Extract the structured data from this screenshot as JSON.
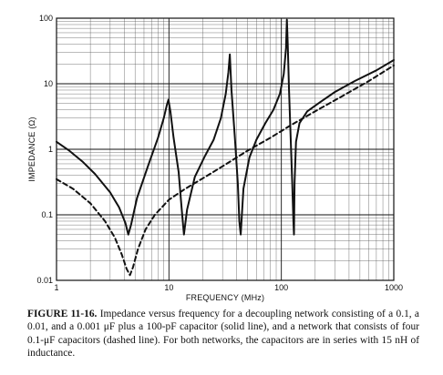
{
  "chart_data": {
    "type": "line",
    "xscale": "log",
    "yscale": "log",
    "xlim": [
      1,
      1000
    ],
    "ylim": [
      0.01,
      100
    ],
    "xlabel": "FREQUENCY (MHz)",
    "ylabel": "IMPEDANCE (Ω)",
    "x_ticks": [
      "1",
      "10",
      "100",
      "1000"
    ],
    "y_ticks": [
      "100",
      "10",
      "1",
      "0.1",
      "0.01"
    ],
    "grid": true,
    "series": [
      {
        "style": "solid",
        "x": [
          1,
          1.3,
          1.7,
          2.2,
          3,
          3.6,
          4.1,
          4.35,
          4.6,
          5.2,
          6.5,
          8,
          9,
          9.6,
          9.9,
          10.3,
          11,
          12.2,
          13,
          13.6,
          14.5,
          17,
          21,
          25,
          29,
          32,
          33.8,
          34.8,
          36,
          38.5,
          41,
          42.3,
          43.5,
          46,
          52,
          60,
          72,
          85,
          97,
          105,
          110,
          112,
          114,
          117,
          121,
          125,
          128,
          129.5,
          131,
          135,
          145,
          170,
          220,
          300,
          450,
          700,
          1000
        ],
        "y": [
          1.3,
          0.95,
          0.65,
          0.42,
          0.22,
          0.13,
          0.075,
          0.05,
          0.07,
          0.18,
          0.55,
          1.5,
          3,
          4.8,
          5.7,
          3.8,
          1.5,
          0.45,
          0.12,
          0.05,
          0.12,
          0.38,
          0.8,
          1.4,
          3,
          7,
          15,
          28,
          8,
          1.6,
          0.3,
          0.08,
          0.05,
          0.25,
          0.75,
          1.4,
          2.5,
          4,
          7,
          14,
          35,
          95,
          40,
          8,
          1.5,
          0.3,
          0.08,
          0.05,
          0.3,
          1.3,
          2.5,
          3.8,
          5.2,
          7.5,
          11,
          16,
          23
        ]
      },
      {
        "style": "dashed",
        "x": [
          1,
          1.4,
          2,
          2.7,
          3.3,
          3.8,
          4.2,
          4.5,
          4.8,
          5.3,
          6.2,
          7.5,
          10,
          14,
          20,
          30,
          50,
          80,
          120,
          200,
          350,
          600,
          1000
        ],
        "y": [
          0.35,
          0.25,
          0.15,
          0.08,
          0.045,
          0.025,
          0.015,
          0.012,
          0.016,
          0.03,
          0.06,
          0.1,
          0.17,
          0.25,
          0.36,
          0.55,
          0.95,
          1.5,
          2.3,
          3.8,
          6.5,
          11,
          19
        ]
      }
    ]
  },
  "caption": {
    "label": "FIGURE 11-16.",
    "text": "Impedance versus frequency for a decoupling network consisting of a 0.1, a 0.01, and a 0.001 μF plus a 100-pF capacitor (solid line), and a network that consists of four 0.1-μF capacitors (dashed line). For both networks, the capacitors are in series with 15 nH of inductance."
  },
  "colors": {
    "ink": "#111111",
    "grid": "#222222"
  }
}
